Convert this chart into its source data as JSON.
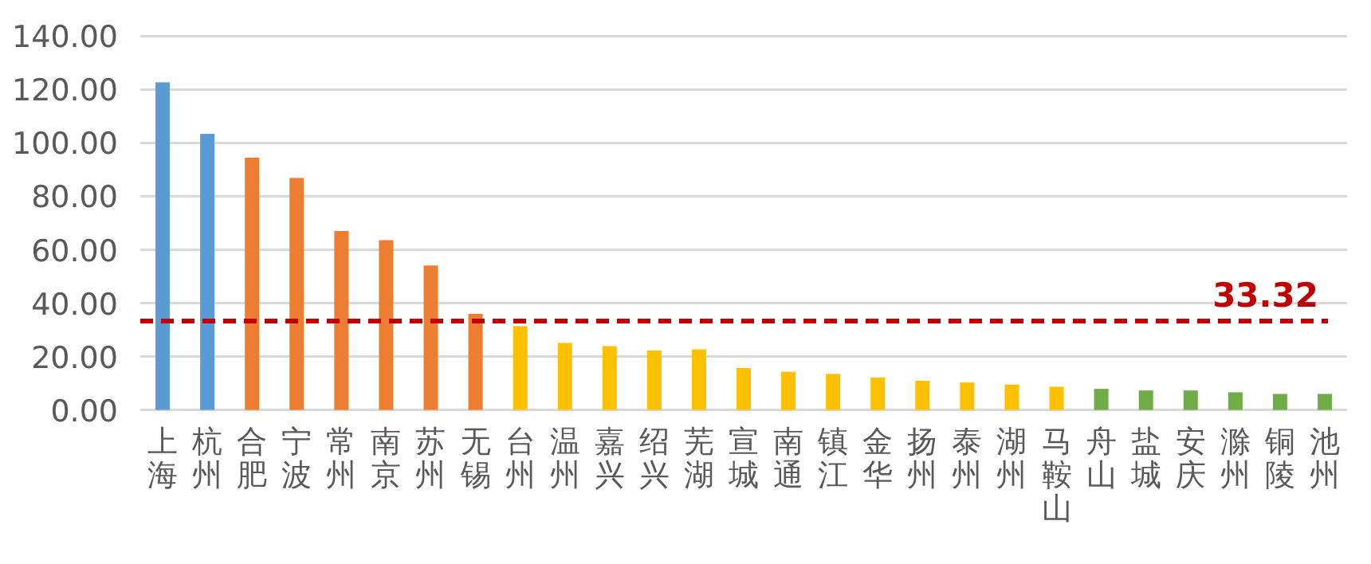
{
  "chart_data": {
    "type": "bar",
    "categories": [
      "上海",
      "杭州",
      "合肥",
      "宁波",
      "常州",
      "南京",
      "苏州",
      "无锡",
      "台州",
      "温州",
      "嘉兴",
      "绍兴",
      "芜湖",
      "宣城",
      "南通",
      "镇江",
      "金华",
      "扬州",
      "泰州",
      "湖州",
      "马鞍山",
      "舟山",
      "盐城",
      "安庆",
      "滁州",
      "铜陵",
      "池州"
    ],
    "values": [
      122.7,
      103.4,
      94.5,
      86.9,
      67.0,
      63.6,
      54.1,
      36.0,
      31.4,
      25.1,
      23.9,
      22.3,
      22.7,
      15.7,
      14.3,
      13.5,
      12.1,
      10.9,
      10.3,
      9.5,
      8.7,
      7.9,
      7.3,
      7.3,
      6.6,
      6.0,
      6.0
    ],
    "colors": [
      "#5b9bd5",
      "#5b9bd5",
      "#ed7d31",
      "#ed7d31",
      "#ed7d31",
      "#ed7d31",
      "#ed7d31",
      "#ed7d31",
      "#ffc000",
      "#ffc000",
      "#ffc000",
      "#ffc000",
      "#ffc000",
      "#ffc000",
      "#ffc000",
      "#ffc000",
      "#ffc000",
      "#ffc000",
      "#ffc000",
      "#ffc000",
      "#ffc000",
      "#70ad47",
      "#70ad47",
      "#70ad47",
      "#70ad47",
      "#70ad47",
      "#70ad47"
    ],
    "ylim": [
      0,
      140
    ],
    "yticks": [
      {
        "value": 0,
        "label": "0.00"
      },
      {
        "value": 20,
        "label": "20.00"
      },
      {
        "value": 40,
        "label": "40.00"
      },
      {
        "value": 60,
        "label": "60.00"
      },
      {
        "value": 80,
        "label": "80.00"
      },
      {
        "value": 100,
        "label": "100.00"
      },
      {
        "value": 120,
        "label": "120.00"
      },
      {
        "value": 140,
        "label": "140.00"
      }
    ],
    "grid": "y",
    "ref_lines": [
      {
        "axis": "y",
        "value": 33.32,
        "label": "33.32",
        "color": "#c00000",
        "line_style": "dashed"
      }
    ]
  }
}
